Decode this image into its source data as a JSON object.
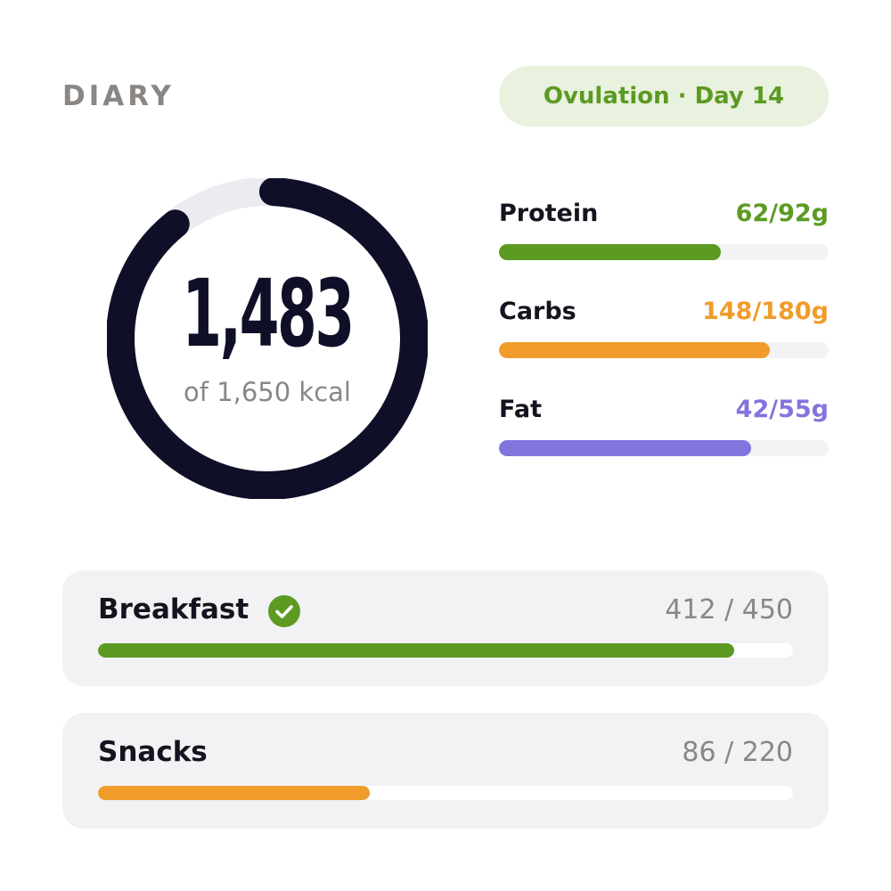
{
  "header": {
    "title": "DIARY",
    "phase_badge": "Ovulation · Day 14"
  },
  "calorie_ring": {
    "value_text": "1,483",
    "caption": "of 1,650 kcal",
    "consumed": 1483,
    "goal": 1650,
    "color": "#0f0f28",
    "track_color": "#ebebf1"
  },
  "macros": [
    {
      "name": "Protein",
      "amount": "62/92g",
      "current": 62,
      "goal": 92,
      "color": "#5c9a22"
    },
    {
      "name": "Carbs",
      "amount": "148/180g",
      "current": 148,
      "goal": 180,
      "color": "#f09c2b"
    },
    {
      "name": "Fat",
      "amount": "42/55g",
      "current": 42,
      "goal": 55,
      "color": "#8274dd"
    }
  ],
  "meals": [
    {
      "name": "Breakfast",
      "amount": "412 / 450",
      "current": 412,
      "goal": 450,
      "color": "#5c9a22",
      "completed": true,
      "icon": "check-circle-icon"
    },
    {
      "name": "Snacks",
      "amount": "86 / 220",
      "current": 86,
      "goal": 220,
      "color": "#f09c2b",
      "completed": false
    }
  ]
}
